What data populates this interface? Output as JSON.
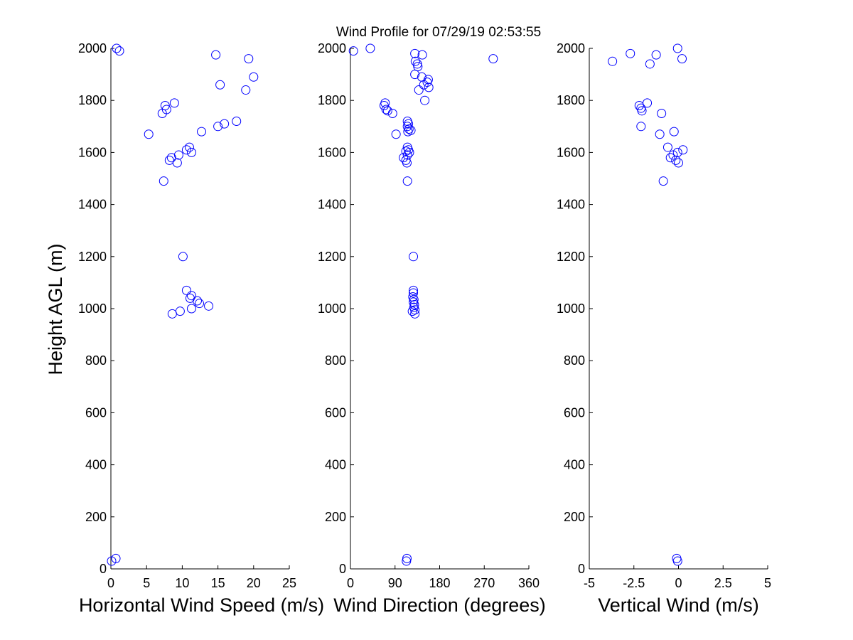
{
  "title": "Wind Profile for  07/29/19 02:53:55",
  "colors": {
    "marker": "#0000ff",
    "axis": "#000000",
    "background": "#ffffff"
  },
  "chart_data": [
    {
      "type": "scatter",
      "xlabel": "Horizontal Wind Speed (m/s)",
      "ylabel": "Height AGL (m)",
      "xlim": [
        0,
        25
      ],
      "ylim": [
        0,
        2000
      ],
      "xticks": [
        "0",
        "5",
        "10",
        "15",
        "20",
        "25"
      ],
      "yticks": [
        "0",
        "200",
        "400",
        "600",
        "800",
        "1000",
        "1200",
        "1400",
        "1600",
        "1800",
        "2000"
      ],
      "marker": "open-circle",
      "points": [
        {
          "x": 0.8,
          "y": 2000
        },
        {
          "x": 1.2,
          "y": 1990
        },
        {
          "x": 14.7,
          "y": 1975
        },
        {
          "x": 19.3,
          "y": 1960
        },
        {
          "x": 20.0,
          "y": 1890
        },
        {
          "x": 15.3,
          "y": 1860
        },
        {
          "x": 18.9,
          "y": 1840
        },
        {
          "x": 8.9,
          "y": 1790
        },
        {
          "x": 7.6,
          "y": 1780
        },
        {
          "x": 7.8,
          "y": 1765
        },
        {
          "x": 7.2,
          "y": 1750
        },
        {
          "x": 17.6,
          "y": 1720
        },
        {
          "x": 15.9,
          "y": 1710
        },
        {
          "x": 15.0,
          "y": 1700
        },
        {
          "x": 12.7,
          "y": 1680
        },
        {
          "x": 5.3,
          "y": 1670
        },
        {
          "x": 11.0,
          "y": 1620
        },
        {
          "x": 10.6,
          "y": 1610
        },
        {
          "x": 11.3,
          "y": 1600
        },
        {
          "x": 9.5,
          "y": 1590
        },
        {
          "x": 8.5,
          "y": 1580
        },
        {
          "x": 8.2,
          "y": 1570
        },
        {
          "x": 9.3,
          "y": 1560
        },
        {
          "x": 7.4,
          "y": 1490
        },
        {
          "x": 10.1,
          "y": 1200
        },
        {
          "x": 10.6,
          "y": 1070
        },
        {
          "x": 11.3,
          "y": 1050
        },
        {
          "x": 11.1,
          "y": 1040
        },
        {
          "x": 12.1,
          "y": 1030
        },
        {
          "x": 12.4,
          "y": 1020
        },
        {
          "x": 13.7,
          "y": 1010
        },
        {
          "x": 11.3,
          "y": 1000
        },
        {
          "x": 9.7,
          "y": 990
        },
        {
          "x": 8.6,
          "y": 980
        },
        {
          "x": 0.7,
          "y": 40
        },
        {
          "x": 0.1,
          "y": 30
        }
      ]
    },
    {
      "type": "scatter",
      "xlabel": "Wind Direction (degrees)",
      "xlim": [
        0,
        360
      ],
      "ylim": [
        0,
        2000
      ],
      "xticks": [
        "0",
        "90",
        "180",
        "270",
        "360"
      ],
      "yticks": [
        "0",
        "200",
        "400",
        "600",
        "800",
        "1000",
        "1200",
        "1400",
        "1600",
        "1800",
        "2000"
      ],
      "marker": "open-circle",
      "points": [
        {
          "x": 40,
          "y": 2000
        },
        {
          "x": 6,
          "y": 1990
        },
        {
          "x": 130,
          "y": 1980
        },
        {
          "x": 145,
          "y": 1975
        },
        {
          "x": 288,
          "y": 1960
        },
        {
          "x": 131,
          "y": 1950
        },
        {
          "x": 135,
          "y": 1940
        },
        {
          "x": 136,
          "y": 1930
        },
        {
          "x": 130,
          "y": 1900
        },
        {
          "x": 144,
          "y": 1890
        },
        {
          "x": 157,
          "y": 1880
        },
        {
          "x": 155,
          "y": 1870
        },
        {
          "x": 148,
          "y": 1860
        },
        {
          "x": 158,
          "y": 1850
        },
        {
          "x": 138,
          "y": 1840
        },
        {
          "x": 150,
          "y": 1800
        },
        {
          "x": 70,
          "y": 1790
        },
        {
          "x": 68,
          "y": 1780
        },
        {
          "x": 72,
          "y": 1765
        },
        {
          "x": 75,
          "y": 1760
        },
        {
          "x": 85,
          "y": 1750
        },
        {
          "x": 115,
          "y": 1720
        },
        {
          "x": 117,
          "y": 1710
        },
        {
          "x": 115,
          "y": 1700
        },
        {
          "x": 118,
          "y": 1690
        },
        {
          "x": 122,
          "y": 1685
        },
        {
          "x": 116,
          "y": 1680
        },
        {
          "x": 92,
          "y": 1670
        },
        {
          "x": 115,
          "y": 1620
        },
        {
          "x": 117,
          "y": 1610
        },
        {
          "x": 112,
          "y": 1605
        },
        {
          "x": 119,
          "y": 1600
        },
        {
          "x": 115,
          "y": 1590
        },
        {
          "x": 107,
          "y": 1580
        },
        {
          "x": 112,
          "y": 1570
        },
        {
          "x": 114,
          "y": 1560
        },
        {
          "x": 115,
          "y": 1490
        },
        {
          "x": 127,
          "y": 1200
        },
        {
          "x": 127,
          "y": 1070
        },
        {
          "x": 127,
          "y": 1060
        },
        {
          "x": 126,
          "y": 1045
        },
        {
          "x": 128,
          "y": 1035
        },
        {
          "x": 127,
          "y": 1025
        },
        {
          "x": 129,
          "y": 1015
        },
        {
          "x": 128,
          "y": 1005
        },
        {
          "x": 130,
          "y": 995
        },
        {
          "x": 125,
          "y": 990
        },
        {
          "x": 130,
          "y": 980
        },
        {
          "x": 114,
          "y": 40
        },
        {
          "x": 113,
          "y": 30
        }
      ]
    },
    {
      "type": "scatter",
      "xlabel": "Vertical Wind (m/s)",
      "xlim": [
        -5,
        5
      ],
      "ylim": [
        0,
        2000
      ],
      "xticks": [
        "-5",
        "-2.5",
        "0",
        "2.5",
        "5"
      ],
      "yticks": [
        "0",
        "200",
        "400",
        "600",
        "800",
        "1000",
        "1200",
        "1400",
        "1600",
        "1800",
        "2000"
      ],
      "marker": "open-circle",
      "points": [
        {
          "x": -0.05,
          "y": 2000
        },
        {
          "x": -2.7,
          "y": 1980
        },
        {
          "x": -1.25,
          "y": 1975
        },
        {
          "x": 0.2,
          "y": 1960
        },
        {
          "x": -3.7,
          "y": 1950
        },
        {
          "x": -1.6,
          "y": 1940
        },
        {
          "x": -1.75,
          "y": 1790
        },
        {
          "x": -2.2,
          "y": 1780
        },
        {
          "x": -2.1,
          "y": 1770
        },
        {
          "x": -2.05,
          "y": 1760
        },
        {
          "x": -0.95,
          "y": 1750
        },
        {
          "x": -2.1,
          "y": 1700
        },
        {
          "x": -0.25,
          "y": 1680
        },
        {
          "x": -1.05,
          "y": 1670
        },
        {
          "x": -0.6,
          "y": 1620
        },
        {
          "x": 0.25,
          "y": 1610
        },
        {
          "x": -0.05,
          "y": 1600
        },
        {
          "x": -0.3,
          "y": 1590
        },
        {
          "x": -0.45,
          "y": 1580
        },
        {
          "x": -0.15,
          "y": 1570
        },
        {
          "x": 0.0,
          "y": 1560
        },
        {
          "x": -0.85,
          "y": 1490
        },
        {
          "x": -0.1,
          "y": 40
        },
        {
          "x": -0.05,
          "y": 30
        }
      ]
    }
  ]
}
